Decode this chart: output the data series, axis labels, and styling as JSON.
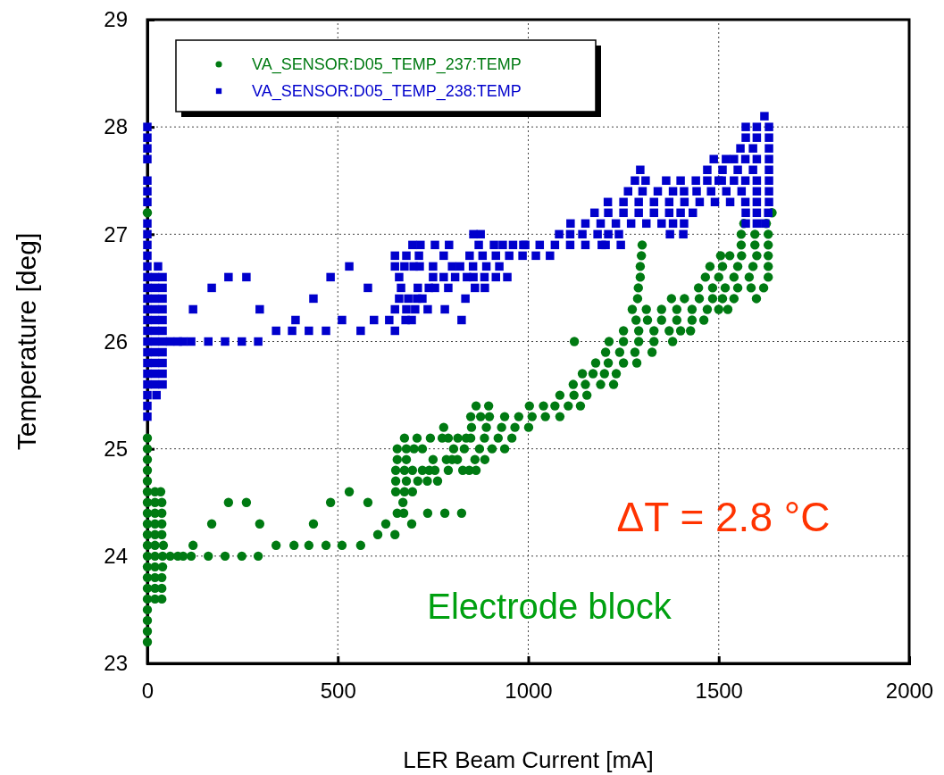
{
  "chart_data": {
    "type": "scatter",
    "xlabel": "LER Beam Current [mA]",
    "ylabel": "Temperature [deg]",
    "xlim": [
      0,
      2000
    ],
    "xticks": [
      0,
      500,
      1000,
      1500,
      2000
    ],
    "ylim": [
      23,
      29
    ],
    "yticks": [
      23,
      24,
      25,
      26,
      27,
      28,
      29
    ],
    "grid": true,
    "legend": "top left",
    "annotations": [
      "ΔT = 2.8 °C",
      "Electrode block"
    ],
    "series": [
      {
        "name": "VA_SENSOR:D05_TEMP_237:TEMP",
        "color": "#007a12",
        "marker": "circle",
        "x": [
          0,
          0,
          0,
          0,
          0,
          0,
          0,
          0,
          0,
          0,
          0,
          0,
          0,
          0,
          0,
          0,
          0,
          0,
          0,
          0,
          0,
          20,
          35,
          20,
          38,
          20,
          38,
          20,
          38,
          20,
          38,
          20,
          42,
          120,
          338,
          385,
          424,
          469,
          511,
          560,
          20,
          40,
          60,
          80,
          94,
          115,
          160,
          204,
          248,
          291,
          20,
          40,
          20,
          38,
          20,
          38,
          20,
          38,
          605,
          650,
          169,
          295,
          436,
          626,
          694,
          656,
          673,
          736,
          781,
          825,
          213,
          260,
          481,
          579,
          671,
          530,
          652,
          675,
          696,
          652,
          680,
          710,
          735,
          762,
          652,
          675,
          696,
          722,
          740,
          755,
          790,
          828,
          845,
          863,
          656,
          680,
          750,
          785,
          800,
          814,
          860,
          886,
          656,
          680,
          700,
          722,
          804,
          832,
          872,
          905,
          938,
          675,
          708,
          743,
          774,
          790,
          815,
          837,
          849,
          885,
          921,
          957,
          778,
          851,
          890,
          930,
          965,
          1001,
          849,
          875,
          898,
          938,
          975,
          1010,
          1045,
          1083,
          863,
          896,
          1003,
          1040,
          1070,
          1105,
          1137,
          1083,
          1120,
          1154,
          1118,
          1150,
          1190,
          1224,
          1142,
          1170,
          1200,
          1231,
          1177,
          1210,
          1250,
          1285,
          1203,
          1240,
          1280,
          1325,
          1121,
          1212,
          1250,
          1290,
          1330,
          1379,
          1250,
          1290,
          1330,
          1370,
          1400,
          1426,
          1283,
          1313,
          1350,
          1390,
          1430,
          1461,
          1273,
          1310,
          1350,
          1390,
          1430,
          1470,
          1500,
          1524,
          1287,
          1376,
          1410,
          1449,
          1484,
          1510,
          1540,
          1599,
          1289,
          1447,
          1484,
          1517,
          1550,
          1585,
          1618,
          1294,
          1465,
          1500,
          1540,
          1580,
          1630,
          1294,
          1477,
          1510,
          1550,
          1590,
          1630,
          1297,
          1505,
          1529,
          1560,
          1600,
          1630,
          1299,
          1559,
          1595,
          1630,
          1559,
          1595,
          1630,
          1566,
          1625,
          1640
        ],
        "values": [
          27.2,
          25.1,
          25.0,
          24.9,
          24.8,
          24.7,
          24.6,
          24.5,
          24.4,
          24.3,
          24.2,
          24.1,
          24.0,
          23.9,
          23.8,
          23.7,
          23.6,
          23.5,
          23.4,
          23.3,
          23.2,
          24.6,
          24.6,
          24.5,
          24.5,
          24.4,
          24.4,
          24.3,
          24.3,
          24.2,
          24.2,
          24.1,
          24.1,
          24.1,
          24.1,
          24.1,
          24.1,
          24.1,
          24.1,
          24.1,
          24.0,
          24.0,
          24.0,
          24.0,
          24.0,
          24.0,
          24.0,
          24.0,
          24.0,
          24.0,
          23.9,
          23.9,
          23.8,
          23.8,
          23.7,
          23.7,
          23.6,
          23.6,
          24.2,
          24.2,
          24.3,
          24.3,
          24.3,
          24.3,
          24.3,
          24.4,
          24.4,
          24.4,
          24.4,
          24.4,
          24.5,
          24.5,
          24.5,
          24.5,
          24.5,
          24.6,
          24.6,
          24.6,
          24.6,
          24.7,
          24.7,
          24.7,
          24.7,
          24.7,
          24.8,
          24.8,
          24.8,
          24.8,
          24.8,
          24.8,
          24.8,
          24.8,
          24.8,
          24.8,
          24.9,
          24.9,
          24.9,
          24.9,
          24.9,
          24.9,
          24.9,
          24.9,
          25.0,
          25.0,
          25.0,
          25.0,
          25.0,
          25.0,
          25.0,
          25.0,
          25.0,
          25.1,
          25.1,
          25.1,
          25.1,
          25.1,
          25.1,
          25.1,
          25.1,
          25.1,
          25.1,
          25.1,
          25.2,
          25.2,
          25.2,
          25.2,
          25.2,
          25.2,
          25.3,
          25.3,
          25.3,
          25.3,
          25.3,
          25.3,
          25.3,
          25.3,
          25.4,
          25.4,
          25.4,
          25.4,
          25.4,
          25.4,
          25.4,
          25.5,
          25.5,
          25.5,
          25.6,
          25.6,
          25.6,
          25.6,
          25.7,
          25.7,
          25.7,
          25.7,
          25.8,
          25.8,
          25.8,
          25.8,
          25.9,
          25.9,
          25.9,
          25.9,
          26.0,
          26.0,
          26.0,
          26.0,
          26.0,
          26.0,
          26.1,
          26.1,
          26.1,
          26.1,
          26.1,
          26.1,
          26.2,
          26.2,
          26.2,
          26.2,
          26.2,
          26.2,
          26.3,
          26.3,
          26.3,
          26.3,
          26.3,
          26.3,
          26.3,
          26.3,
          26.4,
          26.4,
          26.4,
          26.4,
          26.4,
          26.4,
          26.4,
          26.4,
          26.5,
          26.5,
          26.5,
          26.5,
          26.5,
          26.5,
          26.5,
          26.6,
          26.6,
          26.6,
          26.6,
          26.6,
          26.6,
          26.7,
          26.7,
          26.7,
          26.7,
          26.7,
          26.7,
          26.8,
          26.8,
          26.8,
          26.8,
          26.8,
          26.8,
          26.9,
          26.9,
          26.9,
          26.9,
          27.0,
          27.0,
          27.0,
          27.1,
          27.1,
          27.2
        ]
      },
      {
        "name": "VA_SENSOR:D05_TEMP_238:TEMP",
        "color": "#0000cc",
        "marker": "square",
        "x": [
          0,
          0,
          0,
          0,
          0,
          0,
          0,
          0,
          0,
          0,
          0,
          0,
          28,
          0,
          20,
          40,
          0,
          20,
          40,
          0,
          20,
          40,
          0,
          20,
          40,
          0,
          20,
          40,
          0,
          20,
          40,
          0,
          20,
          40,
          60,
          80,
          94,
          115,
          160,
          204,
          248,
          291,
          0,
          20,
          40,
          0,
          20,
          40,
          0,
          20,
          40,
          0,
          20,
          40,
          0,
          24,
          0,
          0,
          338,
          380,
          424,
          469,
          560,
          650,
          389,
          511,
          595,
          635,
          678,
          694,
          825,
          120,
          295,
          650,
          680,
          703,
          736,
          781,
          436,
          661,
          685,
          708,
          722,
          835,
          169,
          579,
          666,
          710,
          739,
          755,
          790,
          860,
          886,
          213,
          260,
          481,
          661,
          750,
          778,
          808,
          839,
          856,
          885,
          915,
          945,
          530,
          650,
          675,
          699,
          715,
          750,
          800,
          821,
          855,
          890,
          924,
          650,
          680,
          713,
          778,
          846,
          880,
          915,
          950,
          985,
          1020,
          1057,
          696,
          717,
          755,
          792,
          870,
          910,
          933,
          960,
          987,
          992,
          1030,
          1070,
          1110,
          1150,
          1193,
          1203,
          1243,
          856,
          875,
          1081,
          1110,
          1142,
          1182,
          1210,
          1238,
          1372,
          1407,
          1111,
          1150,
          1190,
          1230,
          1270,
          1310,
          1350,
          1380,
          1409,
          1571,
          1600,
          1622,
          1174,
          1210,
          1250,
          1290,
          1330,
          1370,
          1400,
          1432,
          1571,
          1600,
          1630,
          1209,
          1250,
          1290,
          1330,
          1370,
          1410,
          1450,
          1490,
          1530,
          1570,
          1600,
          1632,
          1262,
          1300,
          1340,
          1380,
          1409,
          1442,
          1480,
          1520,
          1560,
          1600,
          1632,
          1280,
          1308,
          1362,
          1400,
          1440,
          1470,
          1500,
          1508,
          1540,
          1570,
          1600,
          1632,
          1294,
          1470,
          1510,
          1550,
          1590,
          1632,
          1487,
          1519,
          1540,
          1570,
          1600,
          1632,
          1557,
          1590,
          1632,
          1571,
          1600,
          1632,
          1571,
          1600,
          1632,
          1620
        ],
        "values": [
          28.0,
          27.9,
          27.8,
          27.7,
          27.5,
          27.4,
          27.3,
          27.1,
          27.0,
          26.9,
          26.8,
          26.7,
          26.7,
          26.6,
          26.6,
          26.6,
          26.5,
          26.5,
          26.5,
          26.4,
          26.4,
          26.4,
          26.3,
          26.3,
          26.3,
          26.2,
          26.2,
          26.2,
          26.1,
          26.1,
          26.1,
          26.0,
          26.0,
          26.0,
          26.0,
          26.0,
          26.0,
          26.0,
          26.0,
          26.0,
          26.0,
          26.0,
          25.9,
          25.9,
          25.9,
          25.8,
          25.8,
          25.8,
          25.7,
          25.7,
          25.7,
          25.6,
          25.6,
          25.6,
          25.5,
          25.5,
          25.4,
          25.3,
          26.1,
          26.1,
          26.1,
          26.1,
          26.1,
          26.1,
          26.2,
          26.2,
          26.2,
          26.2,
          26.2,
          26.2,
          26.2,
          26.3,
          26.3,
          26.3,
          26.3,
          26.3,
          26.3,
          26.3,
          26.4,
          26.4,
          26.4,
          26.4,
          26.4,
          26.4,
          26.5,
          26.5,
          26.5,
          26.5,
          26.5,
          26.5,
          26.5,
          26.5,
          26.5,
          26.6,
          26.6,
          26.6,
          26.6,
          26.6,
          26.6,
          26.6,
          26.6,
          26.6,
          26.6,
          26.6,
          26.6,
          26.7,
          26.7,
          26.7,
          26.7,
          26.7,
          26.7,
          26.7,
          26.7,
          26.7,
          26.7,
          26.7,
          26.8,
          26.8,
          26.8,
          26.8,
          26.8,
          26.8,
          26.8,
          26.8,
          26.8,
          26.8,
          26.8,
          26.9,
          26.9,
          26.9,
          26.9,
          26.9,
          26.9,
          26.9,
          26.9,
          26.9,
          26.9,
          26.9,
          26.9,
          26.9,
          26.9,
          26.9,
          26.9,
          26.9,
          27.0,
          27.0,
          27.0,
          27.0,
          27.0,
          27.0,
          27.0,
          27.0,
          27.0,
          27.0,
          27.1,
          27.1,
          27.1,
          27.1,
          27.1,
          27.1,
          27.1,
          27.1,
          27.1,
          27.1,
          27.1,
          27.1,
          27.2,
          27.2,
          27.2,
          27.2,
          27.2,
          27.2,
          27.2,
          27.2,
          27.2,
          27.2,
          27.2,
          27.3,
          27.3,
          27.3,
          27.3,
          27.3,
          27.3,
          27.3,
          27.3,
          27.3,
          27.3,
          27.3,
          27.3,
          27.4,
          27.4,
          27.4,
          27.4,
          27.4,
          27.4,
          27.4,
          27.4,
          27.4,
          27.4,
          27.4,
          27.5,
          27.5,
          27.5,
          27.5,
          27.5,
          27.5,
          27.5,
          27.5,
          27.5,
          27.5,
          27.5,
          27.5,
          27.6,
          27.6,
          27.6,
          27.6,
          27.6,
          27.6,
          27.7,
          27.7,
          27.7,
          27.7,
          27.7,
          27.7,
          27.8,
          27.8,
          27.8,
          27.9,
          27.9,
          27.9,
          28.0,
          28.0,
          28.0,
          28.1
        ]
      }
    ]
  }
}
